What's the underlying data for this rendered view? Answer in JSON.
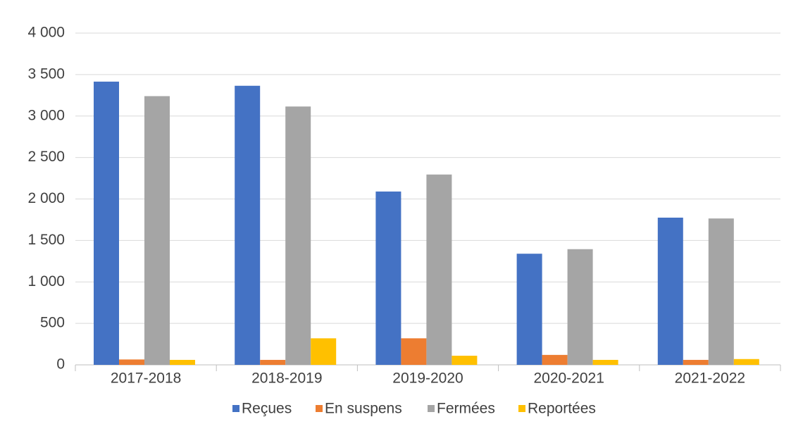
{
  "chart_data": {
    "type": "bar",
    "categories": [
      "2017-2018",
      "2018-2019",
      "2019-2020",
      "2020-2021",
      "2021-2022"
    ],
    "series": [
      {
        "name": "Reçues",
        "color": "#4472c4",
        "values": [
          3415,
          3365,
          2090,
          1340,
          1775
        ]
      },
      {
        "name": "En suspens",
        "color": "#ed7d31",
        "values": [
          65,
          60,
          320,
          120,
          60
        ]
      },
      {
        "name": "Fermées",
        "color": "#a5a5a5",
        "values": [
          3240,
          3115,
          2295,
          1395,
          1765
        ]
      },
      {
        "name": "Reportées",
        "color": "#ffc000",
        "values": [
          60,
          320,
          110,
          60,
          70
        ]
      }
    ],
    "ylim": [
      0,
      4000
    ],
    "yticks": [
      0,
      500,
      {
        "value": 1000,
        "label": "1 000"
      },
      {
        "value": 1500,
        "label": "1 500"
      },
      {
        "value": 2000,
        "label": "2 000"
      },
      {
        "value": 2500,
        "label": "2 500"
      },
      {
        "value": 3000,
        "label": "3 000"
      },
      {
        "value": 3500,
        "label": "3 500"
      },
      {
        "value": 4000,
        "label": "4 000"
      }
    ],
    "grid": true,
    "legend": "bottom"
  }
}
